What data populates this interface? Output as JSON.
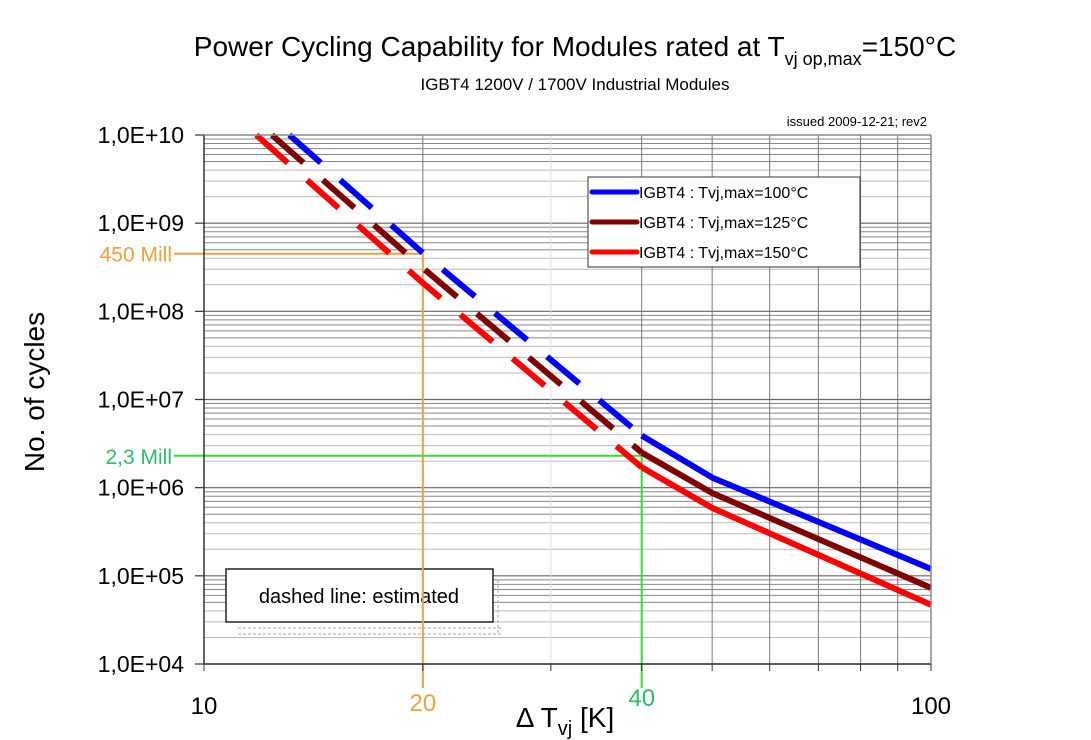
{
  "chart_data": {
    "type": "line",
    "title": {
      "main": "Power Cycling Capability for Modules rated at T",
      "sub": "vj op,max",
      "suffix": "=150°C"
    },
    "subtitle": "IGBT4 1200V / 1700V Industrial Modules",
    "issued": "issued 2009-12-21; rev2",
    "xlabel": {
      "prefix": "Δ T",
      "sub": "vj",
      "suffix": " [K]"
    },
    "ylabel": "No. of cycles",
    "xscale": "log",
    "yscale": "log",
    "xlim": [
      10,
      100
    ],
    "ylim": [
      10000,
      10000000000
    ],
    "xticks": [
      {
        "value": 10,
        "label": "10"
      },
      {
        "value": 100,
        "label": "100"
      }
    ],
    "yticks": [
      {
        "value": 10000000000,
        "label": "1,0E+10"
      },
      {
        "value": 1000000000,
        "label": "1,0E+09"
      },
      {
        "value": 100000000,
        "label": "1,0E+08"
      },
      {
        "value": 10000000,
        "label": "1,0E+07"
      },
      {
        "value": 1000000,
        "label": "1,0E+06"
      },
      {
        "value": 100000,
        "label": "1,0E+05"
      },
      {
        "value": 10000,
        "label": "1,0E+04"
      }
    ],
    "grid": true,
    "legend_position": "top-right",
    "series": [
      {
        "name": "IGBT4 : Tvj,max=100°C",
        "color": "#0000ff",
        "dashed_points": [
          [
            13.1,
            10000000000
          ],
          [
            20,
            460000000
          ],
          [
            40,
            3900000
          ]
        ],
        "solid_points": [
          [
            40,
            3900000
          ],
          [
            50,
            1300000
          ],
          [
            100,
            120000
          ]
        ]
      },
      {
        "name": "IGBT4 : Tvj,max=125°C",
        "color": "#800000",
        "dashed_points": [
          [
            12.4,
            10000000000
          ],
          [
            20,
            310000000
          ],
          [
            40,
            2500000
          ]
        ],
        "solid_points": [
          [
            40,
            2500000
          ],
          [
            50,
            870000
          ],
          [
            100,
            73000
          ]
        ]
      },
      {
        "name": "IGBT4 : Tvj,max=150°C",
        "color": "#ff0000",
        "dashed_points": [
          [
            11.8,
            10000000000
          ],
          [
            20,
            210000000
          ],
          [
            40,
            1700000
          ]
        ],
        "solid_points": [
          [
            40,
            1700000
          ],
          [
            50,
            590000
          ],
          [
            100,
            47000
          ]
        ]
      }
    ],
    "annotations": [
      {
        "x": 20,
        "y": 450000000,
        "x_label": "20",
        "y_label": "450 Mill",
        "color": "#f0a040"
      },
      {
        "x": 40,
        "y": 2300000,
        "x_label": "40",
        "y_label": "2,3 Mill",
        "color": "#33dd33",
        "text_color": "#2ebd6a"
      }
    ],
    "note": "dashed line: estimated"
  }
}
